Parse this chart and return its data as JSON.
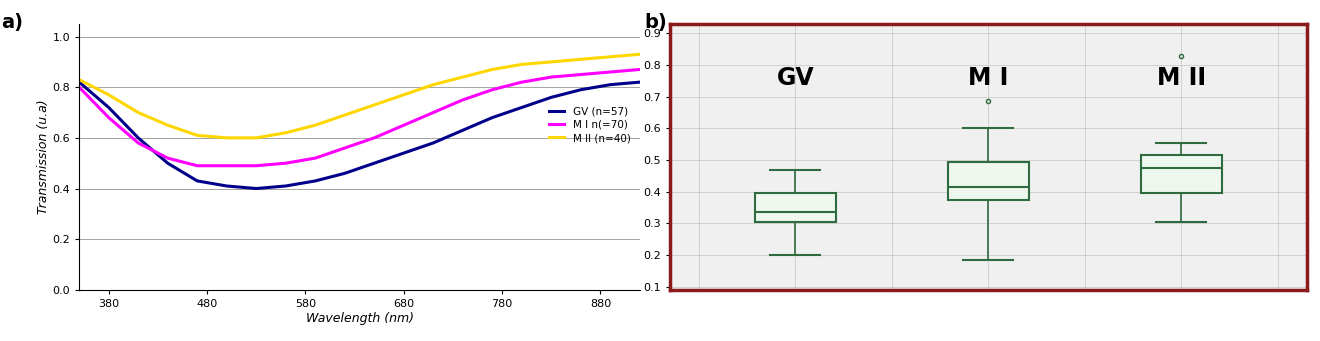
{
  "panel_a": {
    "wavelengths": [
      350,
      380,
      410,
      440,
      470,
      500,
      530,
      560,
      590,
      620,
      650,
      680,
      710,
      740,
      770,
      800,
      830,
      860,
      890,
      920
    ],
    "GV": [
      0.82,
      0.72,
      0.6,
      0.5,
      0.43,
      0.41,
      0.4,
      0.41,
      0.43,
      0.46,
      0.5,
      0.54,
      0.58,
      0.63,
      0.68,
      0.72,
      0.76,
      0.79,
      0.81,
      0.82
    ],
    "MI": [
      0.8,
      0.68,
      0.58,
      0.52,
      0.49,
      0.49,
      0.49,
      0.5,
      0.52,
      0.56,
      0.6,
      0.65,
      0.7,
      0.75,
      0.79,
      0.82,
      0.84,
      0.85,
      0.86,
      0.87
    ],
    "MII": [
      0.83,
      0.77,
      0.7,
      0.65,
      0.61,
      0.6,
      0.6,
      0.62,
      0.65,
      0.69,
      0.73,
      0.77,
      0.81,
      0.84,
      0.87,
      0.89,
      0.9,
      0.91,
      0.92,
      0.93
    ],
    "GV_color": "#00008B",
    "MI_color": "#FF00FF",
    "MII_color": "#FFD700",
    "GV_label": "GV (n=57)",
    "MI_label": "M I n(=70)",
    "MII_label": "M II (n=40)",
    "xlabel": "Wavelength (nm)",
    "ylabel": "Transmission (u.a)",
    "xticks": [
      380,
      480,
      580,
      680,
      780,
      880
    ],
    "yticks": [
      0,
      0.2,
      0.4,
      0.6,
      0.8,
      1
    ],
    "xlim": [
      350,
      920
    ],
    "ylim": [
      0,
      1.05
    ]
  },
  "panel_b": {
    "labels": [
      "GV",
      "M I",
      "M II"
    ],
    "box_color": "#2E6B3E",
    "box_facecolor": "#EEF7EE",
    "background_color": "#F0F0F0",
    "border_color": "#8B1A1A",
    "grid_color": "#CCCCCC",
    "GV": {
      "whisker_low": 0.2,
      "q1": 0.305,
      "median": 0.335,
      "q3": 0.395,
      "whisker_high": 0.47,
      "fliers_high": [],
      "fliers_low": []
    },
    "MI": {
      "whisker_low": 0.185,
      "q1": 0.375,
      "median": 0.415,
      "q3": 0.495,
      "whisker_high": 0.6,
      "fliers_high": [
        0.685
      ],
      "fliers_low": []
    },
    "MII": {
      "whisker_low": 0.305,
      "q1": 0.395,
      "median": 0.475,
      "q3": 0.515,
      "whisker_high": 0.555,
      "fliers_high": [
        0.83
      ],
      "fliers_low": []
    },
    "yticks": [
      0.1,
      0.2,
      0.3,
      0.4,
      0.5,
      0.6,
      0.7,
      0.8,
      0.9
    ],
    "ylim": [
      0.09,
      0.93
    ]
  }
}
